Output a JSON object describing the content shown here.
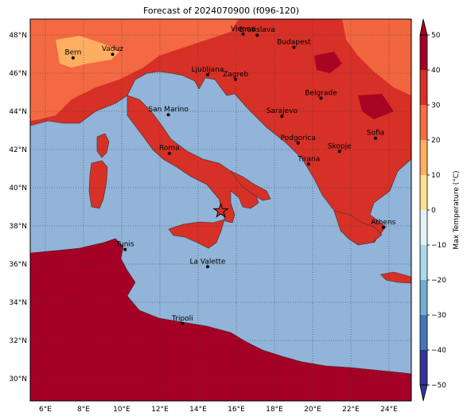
{
  "title": "Forecast of 2024070900 (f096-120)",
  "map": {
    "lon_ticks": [
      "6°E",
      "8°E",
      "10°E",
      "12°E",
      "14°E",
      "16°E",
      "18°E",
      "20°E",
      "22°E",
      "24°E"
    ],
    "lat_ticks": [
      "48°N",
      "46°N",
      "44°N",
      "42°N",
      "40°N",
      "38°N",
      "36°N",
      "34°N",
      "32°N",
      "30°N"
    ],
    "lon_range": [
      5.2,
      25.2
    ],
    "lat_range": [
      28.8,
      49.0
    ],
    "sea_color": "#91b4d8",
    "colors": {
      "t20_30": "#f46d43",
      "t30_40": "#d73027",
      "t40_50": "#a50026",
      "t10_20": "#fdae61"
    },
    "cities": [
      {
        "name": "Bern",
        "lon": 7.45,
        "lat": 46.95
      },
      {
        "name": "Vaduz",
        "lon": 9.52,
        "lat": 47.14
      },
      {
        "name": "Vienna",
        "lon": 16.37,
        "lat": 48.21
      },
      {
        "name": "Bratislava",
        "lon": 17.11,
        "lat": 48.15
      },
      {
        "name": "Budapest",
        "lon": 19.04,
        "lat": 47.5
      },
      {
        "name": "Ljubljana",
        "lon": 14.51,
        "lat": 46.06
      },
      {
        "name": "Zagreb",
        "lon": 15.98,
        "lat": 45.81
      },
      {
        "name": "Belgrade",
        "lon": 20.46,
        "lat": 44.82
      },
      {
        "name": "San Marino",
        "lon": 12.45,
        "lat": 43.94
      },
      {
        "name": "Sarajevo",
        "lon": 18.41,
        "lat": 43.86
      },
      {
        "name": "Podgorica",
        "lon": 19.26,
        "lat": 42.44
      },
      {
        "name": "Sofia",
        "lon": 23.32,
        "lat": 42.7
      },
      {
        "name": "Skopje",
        "lon": 21.43,
        "lat": 42.0
      },
      {
        "name": "Roma",
        "lon": 12.5,
        "lat": 41.9
      },
      {
        "name": "Tirana",
        "lon": 19.82,
        "lat": 41.33
      },
      {
        "name": "Athens",
        "lon": 23.73,
        "lat": 37.98
      },
      {
        "name": "Tunis",
        "lon": 10.18,
        "lat": 36.81
      },
      {
        "name": "La Valette",
        "lon": 14.51,
        "lat": 35.9
      },
      {
        "name": "Tripoli",
        "lon": 13.19,
        "lat": 32.89
      }
    ],
    "marker": {
      "lon": 15.2,
      "lat": 38.85,
      "icon": "star-icon"
    }
  },
  "colorbar": {
    "label": "Max Temperature (°C)",
    "ticks": [
      "50",
      "40",
      "30",
      "20",
      "10",
      "0",
      "−10",
      "−20",
      "−30",
      "−40",
      "−50"
    ],
    "colors": [
      "#a50026",
      "#d73027",
      "#f46d43",
      "#fdae61",
      "#fee090",
      "#ffffbf",
      "#e0f3f8",
      "#abd9e9",
      "#74add1",
      "#4575b4",
      "#313695"
    ]
  }
}
